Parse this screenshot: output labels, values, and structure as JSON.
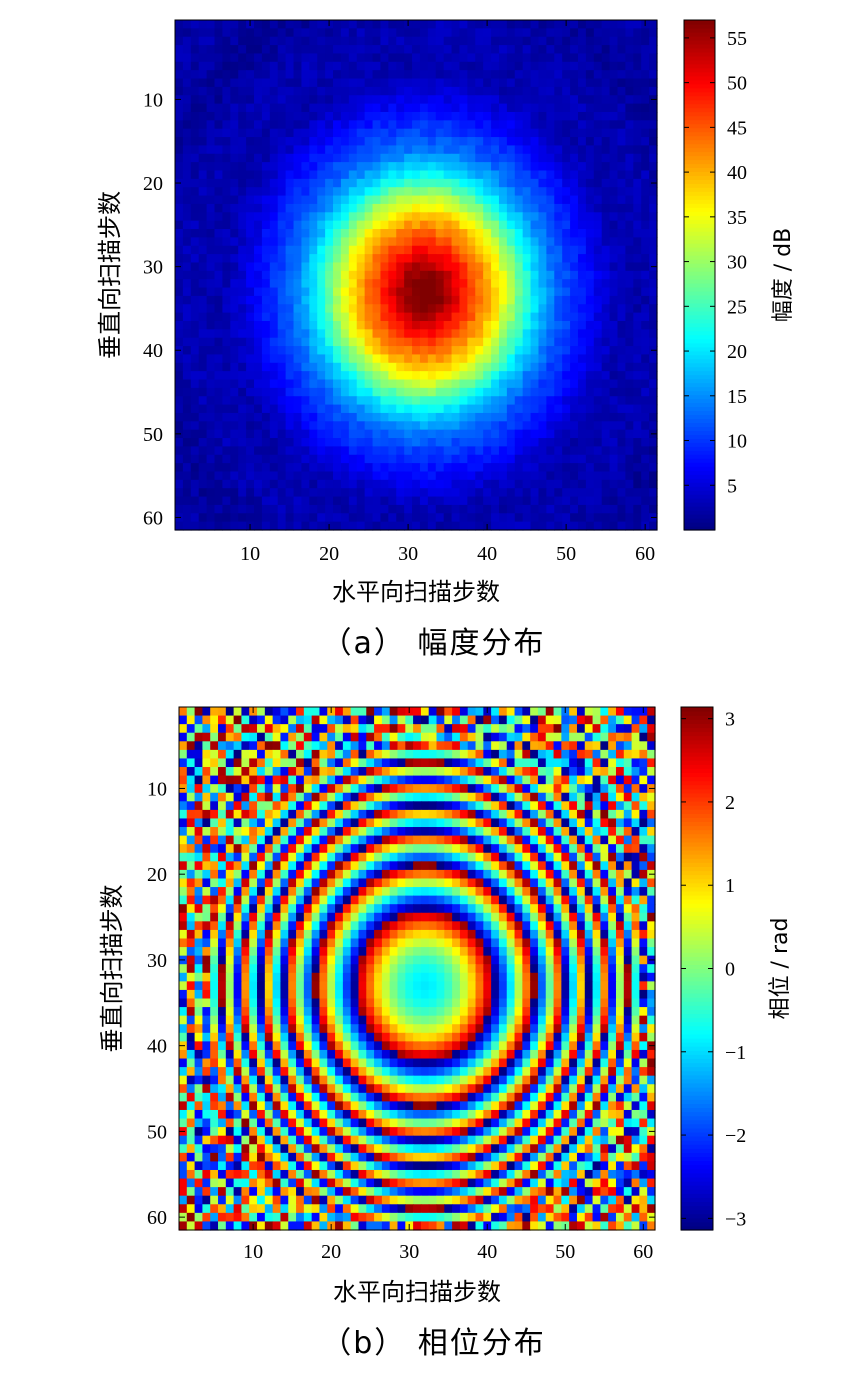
{
  "chart_data": [
    {
      "type": "heatmap",
      "id": "a",
      "caption": "（a） 幅度分布",
      "xlabel": "水平向扫描步数",
      "ylabel": "垂直向扫描步数",
      "colorbar_label": "幅度 / dB",
      "grid_size": [
        61,
        61
      ],
      "xlim": [
        0.5,
        61.5
      ],
      "ylim": [
        0.5,
        61.5
      ],
      "x_ticks": [
        10,
        20,
        30,
        40,
        50,
        60
      ],
      "y_ticks": [
        10,
        20,
        30,
        40,
        50,
        60
      ],
      "y_axis_reversed": true,
      "color_range": [
        0,
        57
      ],
      "colorbar_ticks": [
        5,
        10,
        15,
        20,
        25,
        30,
        35,
        40,
        45,
        50,
        55
      ],
      "colormap": "jet",
      "peak_location": [
        32,
        33
      ],
      "peak_value": 57
    },
    {
      "type": "heatmap",
      "id": "b",
      "caption": "（b） 相位分布",
      "xlabel": "水平向扫描步数",
      "ylabel": "垂直向扫描步数",
      "colorbar_label": "相位 / rad",
      "grid_size": [
        61,
        61
      ],
      "xlim": [
        0.5,
        61.5
      ],
      "ylim": [
        0.5,
        61.5
      ],
      "x_ticks": [
        10,
        20,
        30,
        40,
        50,
        60
      ],
      "y_ticks": [
        10,
        20,
        30,
        40,
        50,
        60
      ],
      "y_axis_reversed": true,
      "color_range": [
        -3.14,
        3.14
      ],
      "colorbar_ticks": [
        3,
        2,
        1,
        0,
        -1,
        -2,
        -3
      ],
      "colorbar_tick_labels": [
        "3",
        "2",
        "1",
        "0",
        "−1",
        "−2",
        "−3"
      ],
      "colormap": "jet",
      "center": [
        32,
        33
      ],
      "center_value": -0.9,
      "ring_period_steps": 10
    }
  ]
}
